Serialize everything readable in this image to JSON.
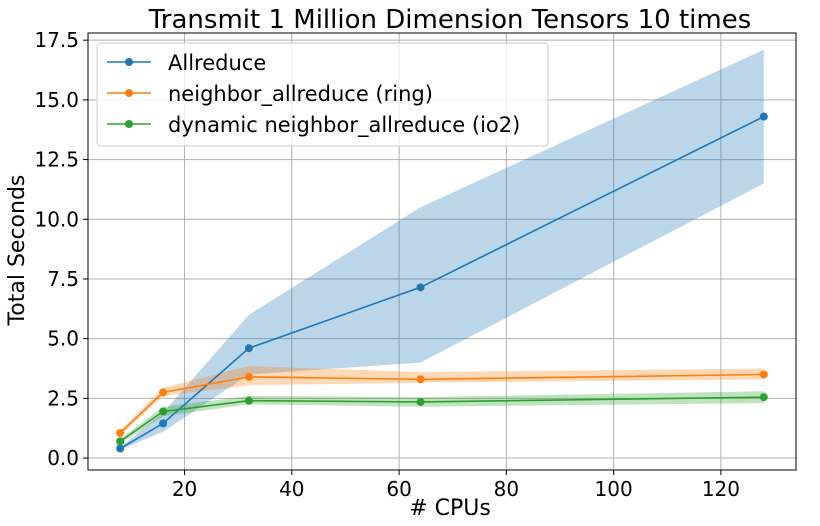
{
  "chart_data": {
    "type": "line",
    "title": "Transmit 1 Million Dimension Tensors 10 times",
    "xlabel": "# CPUs",
    "ylabel": "Total Seconds",
    "xlim": [
      2,
      134
    ],
    "ylim": [
      -0.5,
      17.8
    ],
    "xticks": [
      20,
      40,
      60,
      80,
      100,
      120
    ],
    "yticks": [
      0.0,
      2.5,
      5.0,
      7.5,
      10.0,
      12.5,
      15.0,
      17.5
    ],
    "xtick_labels": [
      "20",
      "40",
      "60",
      "80",
      "100",
      "120"
    ],
    "ytick_labels": [
      "0.0",
      "2.5",
      "5.0",
      "7.5",
      "10.0",
      "12.5",
      "15.0",
      "17.5"
    ],
    "grid": true,
    "legend_position": "top-left",
    "x": [
      8,
      16,
      32,
      64,
      128
    ],
    "series": [
      {
        "name": "Allreduce",
        "color": "#1f77b4",
        "fill_color": "#1f77b4",
        "values": [
          0.4,
          1.45,
          4.6,
          7.15,
          14.3
        ],
        "lower": [
          0.35,
          1.1,
          3.5,
          4.0,
          11.5
        ],
        "upper": [
          0.45,
          1.9,
          6.0,
          10.5,
          17.1
        ]
      },
      {
        "name": "neighbor_allreduce (ring)",
        "color": "#ff7f0e",
        "fill_color": "#ff7f0e",
        "values": [
          1.05,
          2.75,
          3.4,
          3.3,
          3.5
        ],
        "lower": [
          0.95,
          2.6,
          3.05,
          3.15,
          3.3
        ],
        "upper": [
          1.15,
          2.95,
          3.85,
          3.6,
          3.75
        ]
      },
      {
        "name": "dynamic neighbor_allreduce (io2)",
        "color": "#2ca02c",
        "fill_color": "#2ca02c",
        "values": [
          0.7,
          1.95,
          2.4,
          2.35,
          2.55
        ],
        "lower": [
          0.6,
          1.75,
          2.25,
          2.15,
          2.3
        ],
        "upper": [
          0.8,
          2.15,
          2.6,
          2.55,
          2.8
        ]
      }
    ]
  }
}
